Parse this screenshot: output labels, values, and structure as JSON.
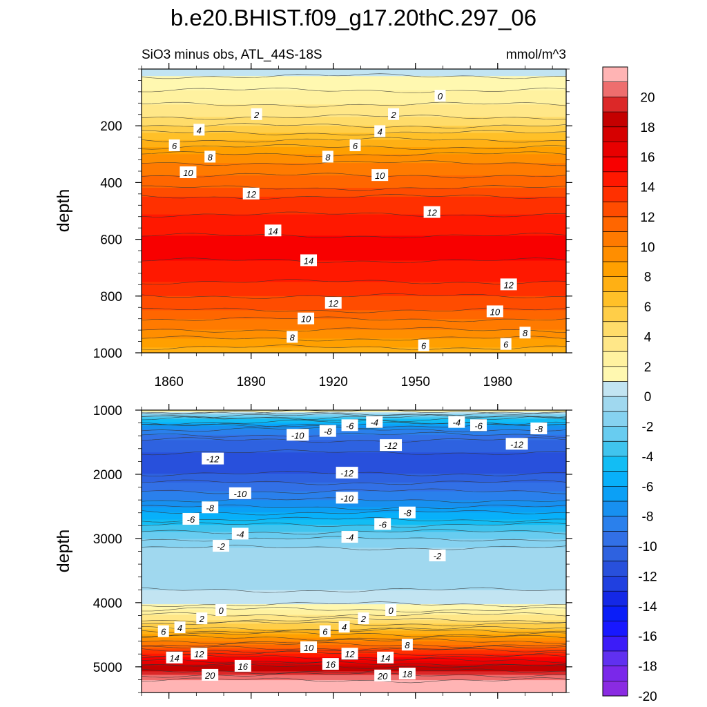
{
  "chart_data": {
    "type": "heatmap",
    "title": "b.e20.BHIST.f09_g17.20thC.297_06",
    "subtitle": "SiO3 minus obs, ATL_44S-18S",
    "units": "mmol/m^3",
    "panels": [
      {
        "name": "upper",
        "ylabel": "depth",
        "ylim": [
          0,
          1000
        ],
        "y_ticks": [
          200,
          400,
          600,
          800,
          1000
        ],
        "xlim": [
          1850,
          2005
        ],
        "x_ticks": [
          1860,
          1890,
          1920,
          1950,
          1980
        ],
        "x_tick_labels": [
          "1860",
          "1890",
          "1920",
          "1950",
          "1980"
        ],
        "profile": [
          {
            "depth": 0,
            "value": -0.5
          },
          {
            "depth": 50,
            "value": 0.5
          },
          {
            "depth": 100,
            "value": 1.5
          },
          {
            "depth": 150,
            "value": 2.5
          },
          {
            "depth": 200,
            "value": 4
          },
          {
            "depth": 250,
            "value": 6
          },
          {
            "depth": 300,
            "value": 8
          },
          {
            "depth": 350,
            "value": 9.5
          },
          {
            "depth": 400,
            "value": 10.5
          },
          {
            "depth": 450,
            "value": 12
          },
          {
            "depth": 500,
            "value": 12.8
          },
          {
            "depth": 550,
            "value": 13.5
          },
          {
            "depth": 600,
            "value": 14.2
          },
          {
            "depth": 650,
            "value": 14.2
          },
          {
            "depth": 700,
            "value": 13.8
          },
          {
            "depth": 750,
            "value": 13
          },
          {
            "depth": 800,
            "value": 12
          },
          {
            "depth": 850,
            "value": 11
          },
          {
            "depth": 900,
            "value": 9.5
          },
          {
            "depth": 950,
            "value": 8
          },
          {
            "depth": 1000,
            "value": 6.5
          }
        ],
        "contour_labels": [
          {
            "text": "0",
            "x": 1959,
            "depth": 95
          },
          {
            "text": "2",
            "x": 1892,
            "depth": 160
          },
          {
            "text": "2",
            "x": 1942,
            "depth": 160
          },
          {
            "text": "4",
            "x": 1871,
            "depth": 215
          },
          {
            "text": "4",
            "x": 1937,
            "depth": 220
          },
          {
            "text": "6",
            "x": 1862,
            "depth": 270
          },
          {
            "text": "6",
            "x": 1928,
            "depth": 270
          },
          {
            "text": "8",
            "x": 1875,
            "depth": 310
          },
          {
            "text": "8",
            "x": 1918,
            "depth": 310
          },
          {
            "text": "10",
            "x": 1867,
            "depth": 365
          },
          {
            "text": "10",
            "x": 1937,
            "depth": 375
          },
          {
            "text": "12",
            "x": 1890,
            "depth": 440
          },
          {
            "text": "12",
            "x": 1956,
            "depth": 505
          },
          {
            "text": "14",
            "x": 1898,
            "depth": 570
          },
          {
            "text": "14",
            "x": 1911,
            "depth": 675
          },
          {
            "text": "12",
            "x": 1920,
            "depth": 825
          },
          {
            "text": "12",
            "x": 1984,
            "depth": 760
          },
          {
            "text": "10",
            "x": 1910,
            "depth": 880
          },
          {
            "text": "10",
            "x": 1979,
            "depth": 855
          },
          {
            "text": "8",
            "x": 1905,
            "depth": 945
          },
          {
            "text": "8",
            "x": 1990,
            "depth": 930
          },
          {
            "text": "6",
            "x": 1953,
            "depth": 975
          },
          {
            "text": "6",
            "x": 1983,
            "depth": 970
          }
        ]
      },
      {
        "name": "lower",
        "ylabel": "depth",
        "ylim": [
          1000,
          5400
        ],
        "y_ticks": [
          1000,
          2000,
          3000,
          4000,
          5000
        ],
        "xlim": [
          1850,
          2005
        ],
        "x_ticks": [
          1860,
          1890,
          1920,
          1950,
          1980
        ],
        "profile": [
          {
            "depth": 1000,
            "value": 2
          },
          {
            "depth": 1100,
            "value": -4
          },
          {
            "depth": 1300,
            "value": -9
          },
          {
            "depth": 1500,
            "value": -11.5
          },
          {
            "depth": 1800,
            "value": -12.5
          },
          {
            "depth": 2000,
            "value": -12
          },
          {
            "depth": 2200,
            "value": -10.5
          },
          {
            "depth": 2400,
            "value": -9
          },
          {
            "depth": 2600,
            "value": -7
          },
          {
            "depth": 2800,
            "value": -5
          },
          {
            "depth": 3000,
            "value": -3
          },
          {
            "depth": 3200,
            "value": -1.5
          },
          {
            "depth": 3500,
            "value": -1.2
          },
          {
            "depth": 3800,
            "value": -1
          },
          {
            "depth": 4000,
            "value": -0.2
          },
          {
            "depth": 4200,
            "value": 2
          },
          {
            "depth": 4400,
            "value": 5
          },
          {
            "depth": 4600,
            "value": 9
          },
          {
            "depth": 4800,
            "value": 13
          },
          {
            "depth": 5000,
            "value": 17
          },
          {
            "depth": 5200,
            "value": 20
          },
          {
            "depth": 5400,
            "value": 21
          }
        ],
        "contour_labels": [
          {
            "text": "-4",
            "x": 1935,
            "depth": 1190
          },
          {
            "text": "-6",
            "x": 1926,
            "depth": 1240
          },
          {
            "text": "-8",
            "x": 1918,
            "depth": 1330
          },
          {
            "text": "-10",
            "x": 1907,
            "depth": 1390
          },
          {
            "text": "-4",
            "x": 1965,
            "depth": 1190
          },
          {
            "text": "-6",
            "x": 1973,
            "depth": 1240
          },
          {
            "text": "-8",
            "x": 1995,
            "depth": 1290
          },
          {
            "text": "-12",
            "x": 1941,
            "depth": 1550
          },
          {
            "text": "-12",
            "x": 1987,
            "depth": 1530
          },
          {
            "text": "-12",
            "x": 1876,
            "depth": 1760
          },
          {
            "text": "-12",
            "x": 1925,
            "depth": 1980
          },
          {
            "text": "-10",
            "x": 1886,
            "depth": 2300
          },
          {
            "text": "-10",
            "x": 1925,
            "depth": 2370
          },
          {
            "text": "-8",
            "x": 1875,
            "depth": 2520
          },
          {
            "text": "-8",
            "x": 1947,
            "depth": 2600
          },
          {
            "text": "-6",
            "x": 1868,
            "depth": 2700
          },
          {
            "text": "-6",
            "x": 1938,
            "depth": 2780
          },
          {
            "text": "-4",
            "x": 1886,
            "depth": 2930
          },
          {
            "text": "-4",
            "x": 1926,
            "depth": 2980
          },
          {
            "text": "-2",
            "x": 1879,
            "depth": 3120
          },
          {
            "text": "-2",
            "x": 1958,
            "depth": 3270
          },
          {
            "text": "0",
            "x": 1879,
            "depth": 4120
          },
          {
            "text": "0",
            "x": 1941,
            "depth": 4120
          },
          {
            "text": "2",
            "x": 1872,
            "depth": 4250
          },
          {
            "text": "2",
            "x": 1931,
            "depth": 4250
          },
          {
            "text": "4",
            "x": 1864,
            "depth": 4390
          },
          {
            "text": "4",
            "x": 1924,
            "depth": 4380
          },
          {
            "text": "6",
            "x": 1858,
            "depth": 4450
          },
          {
            "text": "6",
            "x": 1917,
            "depth": 4450
          },
          {
            "text": "8",
            "x": 1947,
            "depth": 4660
          },
          {
            "text": "10",
            "x": 1911,
            "depth": 4700
          },
          {
            "text": "12",
            "x": 1871,
            "depth": 4800
          },
          {
            "text": "12",
            "x": 1926,
            "depth": 4800
          },
          {
            "text": "14",
            "x": 1862,
            "depth": 4860
          },
          {
            "text": "14",
            "x": 1939,
            "depth": 4860
          },
          {
            "text": "16",
            "x": 1887,
            "depth": 4990
          },
          {
            "text": "16",
            "x": 1919,
            "depth": 4960
          },
          {
            "text": "18",
            "x": 1947,
            "depth": 5110
          },
          {
            "text": "20",
            "x": 1875,
            "depth": 5130
          },
          {
            "text": "20",
            "x": 1938,
            "depth": 5140
          }
        ]
      }
    ],
    "colorbar": {
      "levels": [
        -21,
        -20,
        -19,
        -18,
        -17,
        -16,
        -15,
        -14,
        -13,
        -12,
        -11,
        -10,
        -9,
        -8,
        -7,
        -6,
        -5,
        -4,
        -3,
        -2,
        -1,
        0,
        1,
        2,
        3,
        4,
        5,
        6,
        7,
        8,
        9,
        10,
        11,
        12,
        13,
        14,
        15,
        16,
        17,
        18,
        19,
        20,
        21
      ],
      "tick_labels": [
        "20",
        "18",
        "16",
        "14",
        "12",
        "10",
        "8",
        "6",
        "4",
        "2",
        "0",
        "-2",
        "-4",
        "-6",
        "-8",
        "-10",
        "-12",
        "-14",
        "-16",
        "-18",
        "-20"
      ],
      "colors_bottom_to_top": [
        "#8a2be2",
        "#7a28ea",
        "#6030f0",
        "#3c1cf8",
        "#1818ff",
        "#0a1ef8",
        "#1428e6",
        "#2040e0",
        "#2850dc",
        "#2e62e0",
        "#3270e6",
        "#2a80ec",
        "#1790f0",
        "#0ba0f6",
        "#08b0fa",
        "#12bdf4",
        "#40c4ee",
        "#68ccf0",
        "#86d2f0",
        "#a0d8ef",
        "#c2e4f2",
        "#fff8b0",
        "#fff2a0",
        "#ffe788",
        "#ffdc6a",
        "#ffce48",
        "#ffc028",
        "#ffb014",
        "#ffa000",
        "#ff8e00",
        "#ff7a00",
        "#ff6600",
        "#ff4c00",
        "#ff3000",
        "#ff1800",
        "#f80000",
        "#e80000",
        "#d60000",
        "#c40000",
        "#dc2828",
        "#ee6e6e",
        "#ffb4b4"
      ]
    }
  }
}
